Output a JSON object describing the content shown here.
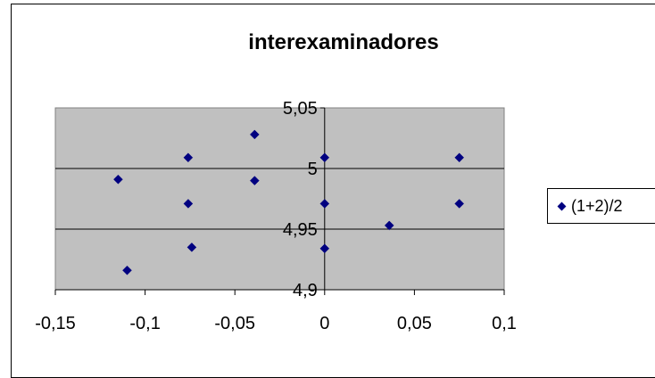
{
  "chart_data": {
    "type": "scatter",
    "title": "interexaminadores",
    "xlabel": "",
    "ylabel": "",
    "xlim": [
      -0.15,
      0.1
    ],
    "ylim": [
      4.9,
      5.05
    ],
    "x_ticks": [
      "-0,15",
      "-0,1",
      "-0,05",
      "0",
      "0,05",
      "0,1"
    ],
    "y_ticks": [
      "4,9",
      "4,95",
      "5",
      "5,05"
    ],
    "grid": true,
    "legend_position": "right",
    "plot_background": "#c0c0c0",
    "marker_color": "#000080",
    "series": [
      {
        "name": "(1+2)/2",
        "points": [
          {
            "x": -0.115,
            "y": 4.991
          },
          {
            "x": -0.11,
            "y": 4.916
          },
          {
            "x": -0.076,
            "y": 5.009
          },
          {
            "x": -0.076,
            "y": 4.971
          },
          {
            "x": -0.074,
            "y": 4.935
          },
          {
            "x": -0.039,
            "y": 5.028
          },
          {
            "x": -0.039,
            "y": 4.99
          },
          {
            "x": 0.0,
            "y": 5.009
          },
          {
            "x": 0.0,
            "y": 4.971
          },
          {
            "x": 0.0,
            "y": 4.934
          },
          {
            "x": 0.036,
            "y": 4.953
          },
          {
            "x": 0.075,
            "y": 5.009
          },
          {
            "x": 0.075,
            "y": 4.971
          }
        ]
      }
    ]
  }
}
